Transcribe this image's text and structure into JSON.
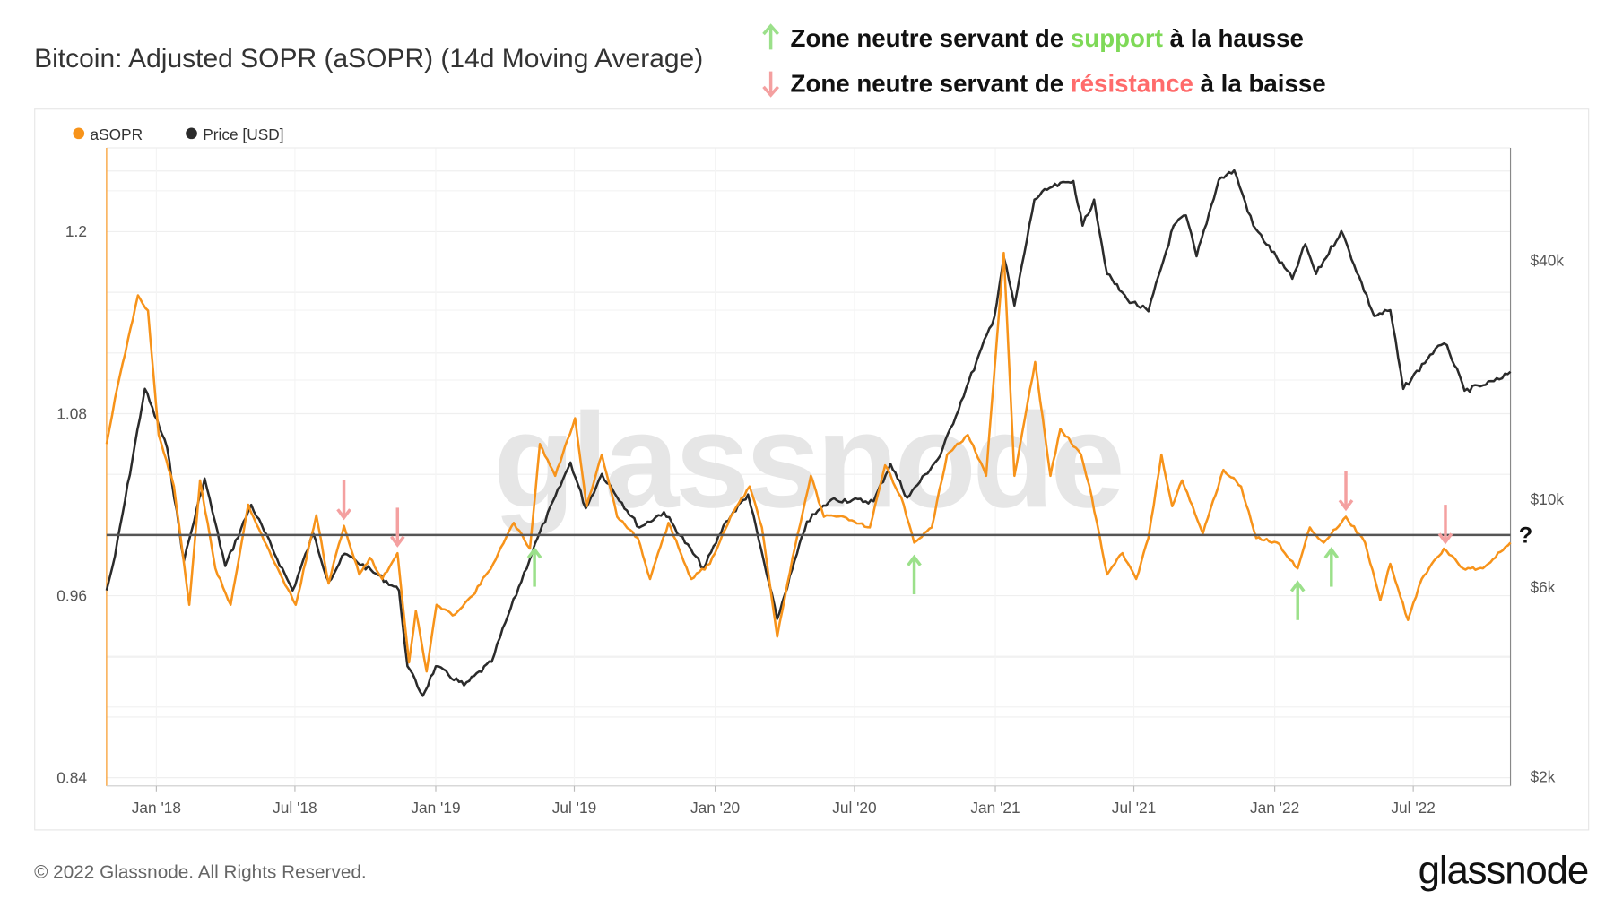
{
  "header": {
    "title": "Bitcoin: Adjusted SOPR (aSOPR) (14d Moving Average)",
    "annotation_support": {
      "prefix": "Zone neutre servant de ",
      "keyword": "support",
      "suffix": " à la hausse",
      "color": "#7ed957"
    },
    "annotation_resistance": {
      "prefix": "Zone neutre servant de ",
      "keyword": "résistance",
      "suffix": " à la baisse",
      "color": "#ff6b6b"
    }
  },
  "footer": {
    "copyright": "© 2022 Glassnode. All Rights Reserved.",
    "logo": "glassnode"
  },
  "watermark": "glassnode",
  "question_mark": "?",
  "colors": {
    "asopr": "#f7931a",
    "price": "#2b2b2b",
    "neutral_line": "#555555",
    "support_arrow": "#9be08a",
    "resistance_arrow": "#f4a0a0"
  },
  "chart_data": {
    "type": "line",
    "title": "Bitcoin: Adjusted SOPR (aSOPR) (14d Moving Average)",
    "x_range": [
      "2017-10-28",
      "2022-11-05"
    ],
    "x_ticks": [
      {
        "date": "2018-01-01",
        "label": "Jan '18"
      },
      {
        "date": "2018-07-01",
        "label": "Jul '18"
      },
      {
        "date": "2019-01-01",
        "label": "Jan '19"
      },
      {
        "date": "2019-07-01",
        "label": "Jul '19"
      },
      {
        "date": "2020-01-01",
        "label": "Jan '20"
      },
      {
        "date": "2020-07-01",
        "label": "Jul '20"
      },
      {
        "date": "2021-01-01",
        "label": "Jan '21"
      },
      {
        "date": "2021-07-01",
        "label": "Jul '21"
      },
      {
        "date": "2022-01-01",
        "label": "Jan '22"
      },
      {
        "date": "2022-07-01",
        "label": "Jul '22"
      }
    ],
    "y_left": {
      "range": [
        0.84,
        1.26
      ],
      "ticks": [
        {
          "v": 0.84,
          "label": "0.84"
        },
        {
          "v": 0.96,
          "label": "0.96"
        },
        {
          "v": 1.08,
          "label": "1.08"
        },
        {
          "v": 1.2,
          "label": "1.2"
        }
      ],
      "scale": "linear"
    },
    "y_right": {
      "scale": "log",
      "range": [
        2000,
        80000
      ],
      "ticks": [
        {
          "v": 2000,
          "label": "$2k"
        },
        {
          "v": 6000,
          "label": "$6k"
        },
        {
          "v": 10000,
          "label": "$10k"
        },
        {
          "v": 40000,
          "label": "$40k"
        }
      ]
    },
    "grid": true,
    "legend_placement": "top-left",
    "reference_line": {
      "value": 1.0,
      "axis": "left"
    },
    "series": [
      {
        "name": "aSOPR",
        "axis": "left",
        "points": [
          [
            "2017-10-28",
            1.06
          ],
          [
            "2017-11-08",
            1.09
          ],
          [
            "2017-12-08",
            1.158
          ],
          [
            "2017-12-21",
            1.148
          ],
          [
            "2018-01-04",
            1.066
          ],
          [
            "2018-01-24",
            1.032
          ],
          [
            "2018-02-13",
            0.954
          ],
          [
            "2018-02-27",
            1.036
          ],
          [
            "2018-03-19",
            0.978
          ],
          [
            "2018-04-08",
            0.954
          ],
          [
            "2018-05-01",
            1.02
          ],
          [
            "2018-06-01",
            0.985
          ],
          [
            "2018-07-02",
            0.954
          ],
          [
            "2018-07-29",
            1.013
          ],
          [
            "2018-08-14",
            0.968
          ],
          [
            "2018-09-03",
            1.006
          ],
          [
            "2018-09-23",
            0.974
          ],
          [
            "2018-10-07",
            0.985
          ],
          [
            "2018-10-23",
            0.971
          ],
          [
            "2018-11-12",
            0.988
          ],
          [
            "2018-11-27",
            0.916
          ],
          [
            "2018-12-06",
            0.95
          ],
          [
            "2018-12-20",
            0.91
          ],
          [
            "2019-01-02",
            0.954
          ],
          [
            "2019-01-23",
            0.947
          ],
          [
            "2019-02-18",
            0.96
          ],
          [
            "2019-03-17",
            0.981
          ],
          [
            "2019-04-13",
            1.008
          ],
          [
            "2019-05-04",
            0.991
          ],
          [
            "2019-05-17",
            1.06
          ],
          [
            "2019-06-06",
            1.039
          ],
          [
            "2019-07-02",
            1.077
          ],
          [
            "2019-07-17",
            1.019
          ],
          [
            "2019-08-06",
            1.053
          ],
          [
            "2019-08-26",
            1.012
          ],
          [
            "2019-09-22",
            0.998
          ],
          [
            "2019-10-08",
            0.971
          ],
          [
            "2019-11-01",
            1.008
          ],
          [
            "2019-12-01",
            0.971
          ],
          [
            "2019-12-25",
            0.981
          ],
          [
            "2020-01-21",
            1.012
          ],
          [
            "2020-02-15",
            1.032
          ],
          [
            "2020-03-02",
            1.005
          ],
          [
            "2020-03-22",
            0.933
          ],
          [
            "2020-04-11",
            0.985
          ],
          [
            "2020-05-05",
            1.039
          ],
          [
            "2020-05-22",
            1.012
          ],
          [
            "2020-06-17",
            1.012
          ],
          [
            "2020-07-21",
            1.005
          ],
          [
            "2020-08-10",
            1.046
          ],
          [
            "2020-08-31",
            1.025
          ],
          [
            "2020-09-17",
            0.995
          ],
          [
            "2020-10-10",
            1.005
          ],
          [
            "2020-10-30",
            1.053
          ],
          [
            "2020-11-26",
            1.066
          ],
          [
            "2020-12-20",
            1.039
          ],
          [
            "2021-01-12",
            1.186
          ],
          [
            "2021-01-26",
            1.039
          ],
          [
            "2021-02-22",
            1.114
          ],
          [
            "2021-03-14",
            1.039
          ],
          [
            "2021-03-27",
            1.07
          ],
          [
            "2021-04-23",
            1.053
          ],
          [
            "2021-05-07",
            1.025
          ],
          [
            "2021-05-27",
            0.974
          ],
          [
            "2021-06-16",
            0.988
          ],
          [
            "2021-07-04",
            0.971
          ],
          [
            "2021-07-20",
            0.998
          ],
          [
            "2021-08-06",
            1.053
          ],
          [
            "2021-08-20",
            1.019
          ],
          [
            "2021-09-02",
            1.036
          ],
          [
            "2021-09-29",
            1.001
          ],
          [
            "2021-10-26",
            1.043
          ],
          [
            "2021-11-18",
            1.032
          ],
          [
            "2021-12-08",
            0.998
          ],
          [
            "2022-01-04",
            0.995
          ],
          [
            "2022-01-31",
            0.978
          ],
          [
            "2022-02-16",
            1.005
          ],
          [
            "2022-03-06",
            0.995
          ],
          [
            "2022-04-04",
            1.012
          ],
          [
            "2022-04-29",
            0.995
          ],
          [
            "2022-05-19",
            0.957
          ],
          [
            "2022-06-01",
            0.981
          ],
          [
            "2022-06-24",
            0.944
          ],
          [
            "2022-07-12",
            0.971
          ],
          [
            "2022-08-10",
            0.991
          ],
          [
            "2022-09-04",
            0.978
          ],
          [
            "2022-09-30",
            0.978
          ],
          [
            "2022-11-05",
            0.995
          ]
        ]
      },
      {
        "name": "Price [USD]",
        "axis": "right",
        "points": [
          [
            "2017-10-28",
            5900
          ],
          [
            "2017-11-08",
            7200
          ],
          [
            "2017-12-17",
            19000
          ],
          [
            "2018-01-15",
            13500
          ],
          [
            "2018-02-06",
            7000
          ],
          [
            "2018-03-05",
            11300
          ],
          [
            "2018-04-01",
            6800
          ],
          [
            "2018-05-05",
            9700
          ],
          [
            "2018-06-28",
            5900
          ],
          [
            "2018-07-25",
            8200
          ],
          [
            "2018-08-14",
            6200
          ],
          [
            "2018-09-04",
            7300
          ],
          [
            "2018-10-15",
            6500
          ],
          [
            "2018-11-14",
            5900
          ],
          [
            "2018-11-25",
            3800
          ],
          [
            "2018-12-15",
            3200
          ],
          [
            "2019-01-01",
            3800
          ],
          [
            "2019-02-07",
            3400
          ],
          [
            "2019-03-15",
            3900
          ],
          [
            "2019-04-02",
            4900
          ],
          [
            "2019-05-14",
            8000
          ],
          [
            "2019-06-26",
            12400
          ],
          [
            "2019-07-16",
            9500
          ],
          [
            "2019-08-06",
            11600
          ],
          [
            "2019-09-24",
            8500
          ],
          [
            "2019-10-26",
            9300
          ],
          [
            "2019-12-17",
            6700
          ],
          [
            "2020-01-15",
            8800
          ],
          [
            "2020-02-13",
            10300
          ],
          [
            "2020-03-22",
            5000
          ],
          [
            "2020-04-30",
            8800
          ],
          [
            "2020-06-01",
            10000
          ],
          [
            "2020-07-26",
            9900
          ],
          [
            "2020-08-17",
            12300
          ],
          [
            "2020-09-08",
            10100
          ],
          [
            "2020-10-21",
            12900
          ],
          [
            "2020-11-24",
            19100
          ],
          [
            "2020-12-31",
            29000
          ],
          [
            "2021-01-12",
            40800
          ],
          [
            "2021-01-26",
            30800
          ],
          [
            "2021-02-21",
            57000
          ],
          [
            "2021-03-13",
            61000
          ],
          [
            "2021-04-13",
            63500
          ],
          [
            "2021-04-25",
            49000
          ],
          [
            "2021-05-10",
            57000
          ],
          [
            "2021-05-27",
            37000
          ],
          [
            "2021-06-22",
            32000
          ],
          [
            "2021-07-20",
            29800
          ],
          [
            "2021-08-22",
            49000
          ],
          [
            "2021-09-07",
            52000
          ],
          [
            "2021-09-21",
            41000
          ],
          [
            "2021-10-20",
            64000
          ],
          [
            "2021-11-09",
            67500
          ],
          [
            "2021-12-04",
            49000
          ],
          [
            "2022-01-24",
            36000
          ],
          [
            "2022-02-10",
            44000
          ],
          [
            "2022-02-24",
            37000
          ],
          [
            "2022-03-29",
            47500
          ],
          [
            "2022-05-11",
            29000
          ],
          [
            "2022-06-01",
            30000
          ],
          [
            "2022-06-18",
            19000
          ],
          [
            "2022-07-30",
            24000
          ],
          [
            "2022-08-14",
            24500
          ],
          [
            "2022-09-06",
            18800
          ],
          [
            "2022-09-30",
            19400
          ],
          [
            "2022-10-25",
            20200
          ],
          [
            "2022-11-05",
            21000
          ]
        ]
      }
    ],
    "annotations": [
      {
        "type": "resistance",
        "date": "2018-09-03"
      },
      {
        "type": "resistance",
        "date": "2018-11-12"
      },
      {
        "type": "support",
        "date": "2019-05-10"
      },
      {
        "type": "support",
        "date": "2020-09-17"
      },
      {
        "type": "support",
        "date": "2022-01-31"
      },
      {
        "type": "support",
        "date": "2022-03-16"
      },
      {
        "type": "resistance",
        "date": "2022-04-04"
      },
      {
        "type": "resistance",
        "date": "2022-08-12"
      }
    ]
  }
}
